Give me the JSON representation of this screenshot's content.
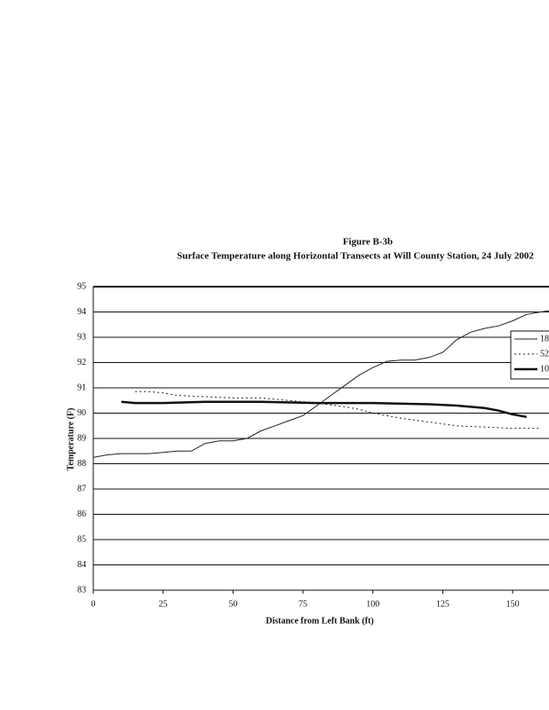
{
  "chart_data": {
    "type": "line",
    "title": "Figure B-3b",
    "subtitle": "Surface Temperature along Horizontal Transects at Will County Station, 24 July 2002",
    "x_label": "Distance from Left Bank (ft)",
    "y_label": "Temperature (F)",
    "xlim": [
      0,
      163
    ],
    "xticks": [
      0,
      25,
      50,
      75,
      100,
      125,
      150
    ],
    "ylim": [
      83,
      95
    ],
    "yticks": [
      83,
      84,
      85,
      86,
      87,
      88,
      89,
      90,
      91,
      92,
      93,
      94,
      95
    ],
    "grid": true,
    "legend": "right",
    "series": [
      {
        "name": "18",
        "color": "#222222",
        "style": "solid",
        "width": 1,
        "x": [
          0,
          5,
          10,
          20,
          25,
          30,
          35,
          40,
          45,
          50,
          55,
          60,
          65,
          70,
          75,
          80,
          85,
          90,
          95,
          100,
          105,
          110,
          115,
          120,
          125,
          130,
          135,
          140,
          145,
          150,
          155,
          160,
          163
        ],
        "values": [
          88.25,
          88.35,
          88.4,
          88.4,
          88.45,
          88.5,
          88.5,
          88.8,
          88.9,
          88.9,
          89.0,
          89.3,
          89.5,
          89.7,
          89.9,
          90.3,
          90.7,
          91.1,
          91.5,
          91.8,
          92.05,
          92.1,
          92.1,
          92.2,
          92.4,
          92.9,
          93.2,
          93.35,
          93.45,
          93.65,
          93.9,
          94.0,
          94.05
        ]
      },
      {
        "name": "52",
        "color": "#222222",
        "style": "dotted",
        "width": 1,
        "x": [
          15,
          20,
          25,
          30,
          40,
          50,
          60,
          70,
          80,
          90,
          95,
          100,
          110,
          120,
          130,
          140,
          150,
          160
        ],
        "values": [
          90.85,
          90.85,
          90.8,
          90.7,
          90.65,
          90.6,
          90.6,
          90.5,
          90.4,
          90.25,
          90.15,
          90.0,
          89.8,
          89.65,
          89.5,
          89.45,
          89.4,
          89.4
        ]
      },
      {
        "name": "10",
        "color": "#111111",
        "style": "solid",
        "width": 2.5,
        "x": [
          10,
          15,
          25,
          40,
          60,
          80,
          100,
          120,
          130,
          140,
          145,
          150,
          155
        ],
        "values": [
          90.45,
          90.4,
          90.4,
          90.45,
          90.45,
          90.4,
          90.4,
          90.35,
          90.3,
          90.2,
          90.1,
          89.95,
          89.85
        ]
      }
    ]
  }
}
